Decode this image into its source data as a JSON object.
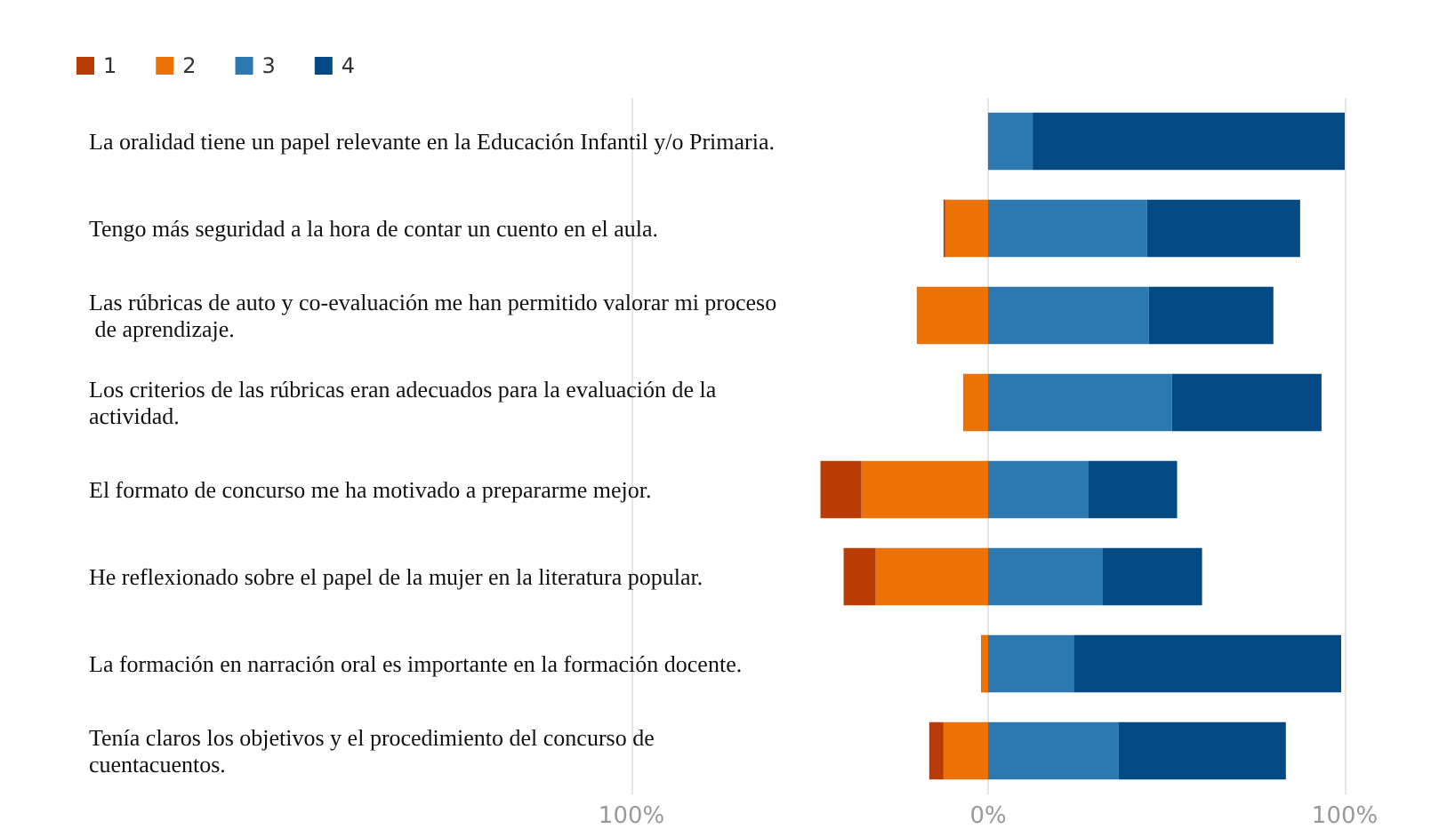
{
  "chart_data": {
    "type": "bar",
    "orientation": "horizontal",
    "stacked": true,
    "categories": [
      "La oralidad tiene un papel relevante en la Educación Infantil y/o Primaria.",
      "Tengo más seguridad a la hora de contar un cuento en el aula.",
      "Las rúbricas de auto y co-evaluación me han permitido valorar mi proceso de aprendizaje.",
      "Los criterios de las rúbricas eran adecuados para la evaluación de la actividad.",
      "El formato de concurso me ha motivado a prepararme mejor.",
      "He reflexionado sobre el papel de la mujer en la literatura popular.",
      "La formación en narración oral es importante en la formación docente.",
      "Tenía claros los objetivos y el procedimiento del concurso de cuentacuentos."
    ],
    "series": [
      {
        "name": "1",
        "color": "#b83c03",
        "values": [
          null,
          -0.5,
          null,
          null,
          -11.5,
          -9,
          null,
          -4
        ]
      },
      {
        "name": "2",
        "color": "#ec7206",
        "values": [
          null,
          -12,
          -20,
          -7,
          -35.5,
          -31.5,
          -2,
          -12.5
        ]
      },
      {
        "name": "3",
        "color": "#2b79b0",
        "values": [
          12.5,
          44.5,
          45,
          51.5,
          28,
          32,
          24,
          36.5
        ]
      },
      {
        "name": "4",
        "color": "#034a84",
        "values": [
          87.5,
          43,
          35,
          42,
          25,
          28,
          75,
          47
        ]
      }
    ],
    "xlim": [
      -100,
      100
    ],
    "xticks": [
      {
        "value": -100,
        "label": "100%"
      },
      {
        "value": 0,
        "label": "0%"
      },
      {
        "value": 100,
        "label": "100%"
      }
    ],
    "grid": "x",
    "legend": "top left"
  }
}
